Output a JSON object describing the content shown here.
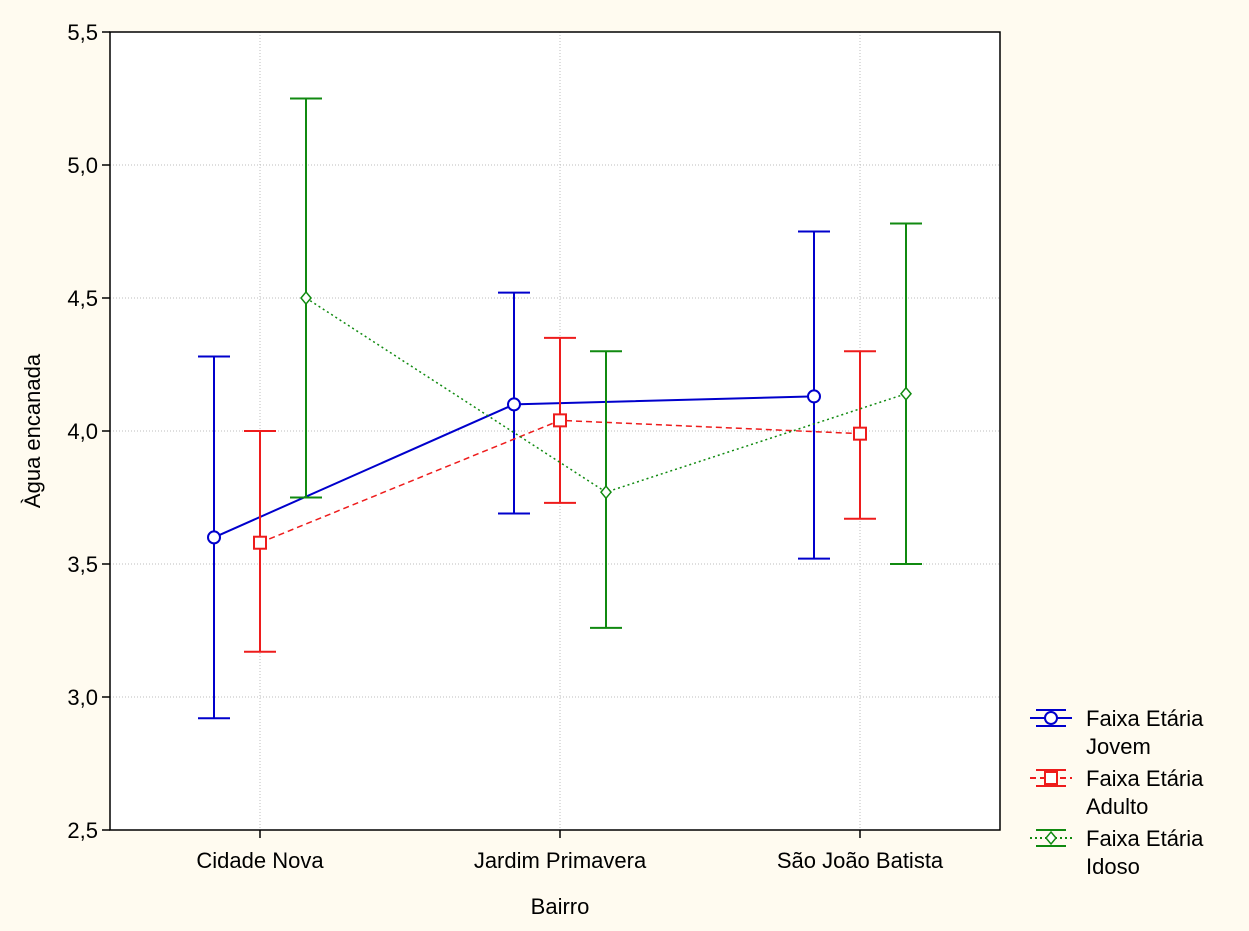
{
  "chart_data": {
    "type": "line",
    "xlabel": "Bairro",
    "ylabel": "Àgua encanada",
    "categories": [
      "Cidade Nova",
      "Jardim Primavera",
      "São João Batista"
    ],
    "y_ticks": [
      "2,5",
      "3,0",
      "3,5",
      "4,0",
      "4,5",
      "5,0",
      "5,5"
    ],
    "ylim": [
      2.5,
      5.5
    ],
    "grid": true,
    "legend_position": "bottom-right",
    "series": [
      {
        "name_line1": "Faixa Etária",
        "name_line2": "Jovem",
        "color": "#0000cc",
        "line_style": "solid",
        "marker": "circle",
        "offset": -1,
        "values": [
          3.6,
          4.1,
          4.13
        ],
        "lower": [
          2.92,
          3.69,
          3.52
        ],
        "upper": [
          4.28,
          4.52,
          4.75
        ]
      },
      {
        "name_line1": "Faixa Etária",
        "name_line2": "Adulto",
        "color": "#ee1c1c",
        "line_style": "dashed",
        "marker": "square",
        "offset": 0,
        "values": [
          3.58,
          4.04,
          3.99
        ],
        "lower": [
          3.17,
          3.73,
          3.67
        ],
        "upper": [
          4.0,
          4.35,
          4.3
        ]
      },
      {
        "name_line1": "Faixa Etária",
        "name_line2": "Idoso",
        "color": "#108a10",
        "line_style": "dotted",
        "marker": "diamond",
        "offset": 1,
        "values": [
          4.5,
          3.77,
          4.14
        ],
        "lower": [
          3.75,
          3.26,
          3.5
        ],
        "upper": [
          5.25,
          4.3,
          4.78
        ]
      }
    ]
  }
}
